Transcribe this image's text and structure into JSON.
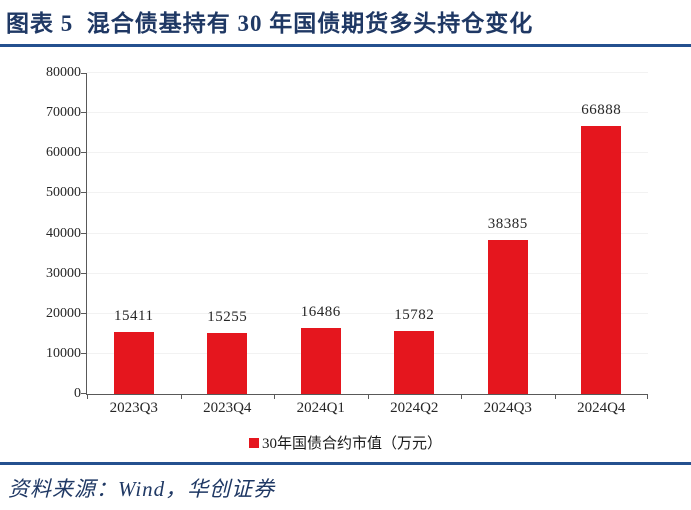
{
  "header": {
    "title": "图表 5  混合债基持有 30 年国债期货多头持仓变化"
  },
  "footer": {
    "source_label": "资料来源：Wind，华创证券"
  },
  "legend": {
    "label": "30年国债合约市值（万元）",
    "marker_color": "#E5161E"
  },
  "colors": {
    "bar_red": "#E5161E",
    "title_navy": "#1F3864",
    "rule_blue": "#24508F",
    "axis_gray": "#595959"
  },
  "chart_data": {
    "type": "bar",
    "categories": [
      "2023Q3",
      "2023Q4",
      "2024Q1",
      "2024Q2",
      "2024Q3",
      "2024Q4"
    ],
    "values": [
      15411,
      15255,
      16486,
      15782,
      38385,
      66888
    ],
    "series_name": "30年国债合约市值（万元）",
    "title": "",
    "xlabel": "",
    "ylabel": "",
    "ylim": [
      0,
      80000
    ],
    "ytick_step": 10000,
    "ytick_labels": [
      "0",
      "10000",
      "20000",
      "30000",
      "40000",
      "50000",
      "60000",
      "70000",
      "80000"
    ],
    "data_labels_shown": true,
    "grid": "faint-horizontal",
    "legend_position": "bottom-center",
    "bar_color": "#E5161E"
  }
}
